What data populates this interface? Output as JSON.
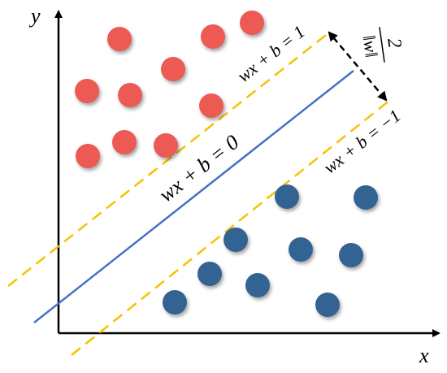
{
  "axes": {
    "x": "x",
    "y": "y"
  },
  "lines": [
    {
      "label": "wx + b = 1"
    },
    {
      "label": "wx + b = 0"
    },
    {
      "label": "wx + b = −1"
    }
  ],
  "margin": {
    "numerator": "2",
    "denominator": "‖w‖"
  }
}
